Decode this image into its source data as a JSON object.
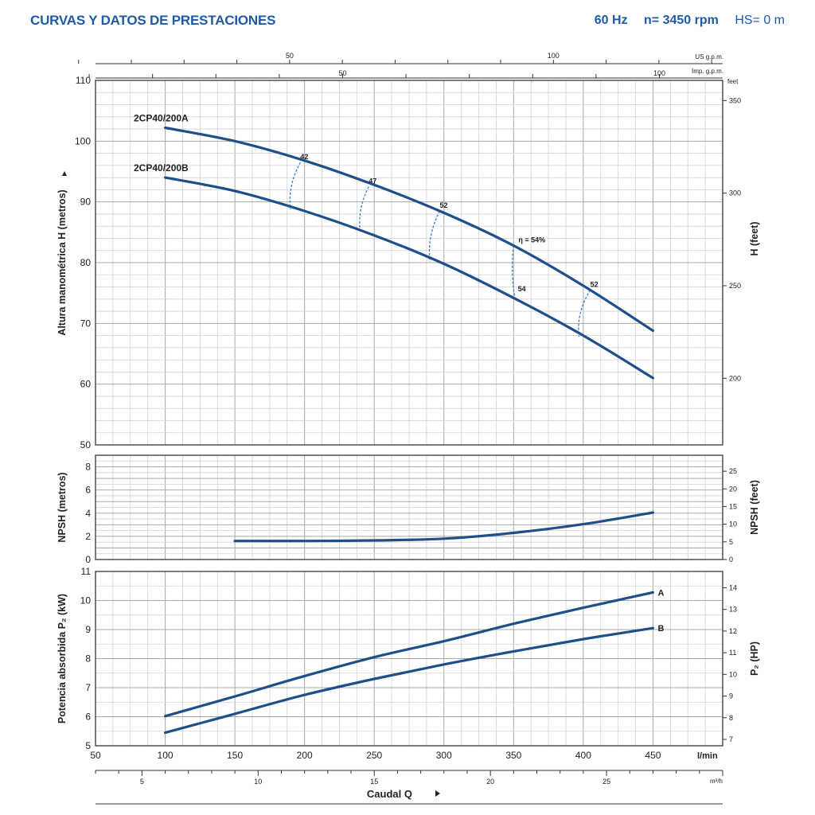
{
  "header": {
    "title": "CURVAS Y DATOS DE PRESTACIONES",
    "frequency": "60 Hz",
    "speed": "n= 3450 rpm",
    "hs": "HS= 0 m"
  },
  "colors": {
    "curve": "#1f4f8a",
    "title": "#1f5aa6",
    "grid": "#c4c4c4",
    "efficiency": "#3a7fc0"
  },
  "chart_data": [
    {
      "type": "line",
      "id": "head",
      "ylabel": "Altura manométrica H (metros)",
      "ylabel_right": "H (feet)",
      "right_unit": "feet",
      "xlim": [
        50,
        500
      ],
      "ylim": [
        50,
        110
      ],
      "yticks": [
        50,
        60,
        70,
        80,
        90,
        100,
        110
      ],
      "yticks_right": [
        200,
        250,
        300,
        350
      ],
      "top_scale_us": {
        "unit": "US g.p.m.",
        "ticks": [
          50,
          100
        ]
      },
      "top_scale_imp": {
        "unit": "Imp. g.p.m.",
        "ticks": [
          50,
          100
        ]
      },
      "series": [
        {
          "name": "2CP40/200A",
          "x": [
            100,
            150,
            200,
            250,
            300,
            350,
            400,
            450
          ],
          "y": [
            102.2,
            100,
            96.8,
            92.8,
            88.2,
            82.8,
            76.2,
            68.8
          ]
        },
        {
          "name": "2CP40/200B",
          "x": [
            100,
            150,
            200,
            250,
            300,
            350,
            400,
            450
          ],
          "y": [
            94,
            91.8,
            88.5,
            84.5,
            79.8,
            74.2,
            68,
            61
          ]
        }
      ],
      "efficiency": {
        "label_prefix": "η = ",
        "lines": [
          {
            "label": "42",
            "x_top": 197,
            "y_top": 96.5,
            "x_bot": 190,
            "y_bot": 88.8
          },
          {
            "label": "47",
            "x_top": 246,
            "y_top": 92.5,
            "x_bot": 240,
            "y_bot": 85
          },
          {
            "label": "52",
            "x_top": 297,
            "y_top": 88.5,
            "x_bot": 290,
            "y_bot": 80.2
          },
          {
            "label": "54%",
            "x_top": 350,
            "y_top": 82.8,
            "x_bot": 351,
            "y_bot": 74
          },
          {
            "label": "52",
            "x_top": 405,
            "y_top": 75.5,
            "x_bot": 397,
            "y_bot": 67.8
          }
        ],
        "bottom_label": {
          "text": "54",
          "x": 353,
          "y": 74.5
        }
      }
    },
    {
      "type": "line",
      "id": "npsh",
      "ylabel": "NPSH (metros)",
      "ylabel_right": "NPSH (feet)",
      "xlim": [
        50,
        500
      ],
      "ylim": [
        0,
        9
      ],
      "yticks": [
        0,
        2,
        4,
        6,
        8
      ],
      "yticks_right": [
        0,
        5,
        10,
        15,
        20,
        25
      ],
      "series": [
        {
          "name": "NPSH",
          "x": [
            150,
            200,
            250,
            300,
            350,
            400,
            450
          ],
          "y": [
            1.6,
            1.6,
            1.65,
            1.8,
            2.3,
            3.05,
            4.05
          ]
        }
      ]
    },
    {
      "type": "line",
      "id": "power",
      "ylabel": "Potencia absorbida P₂ (kW)",
      "ylabel_right": "P₂ (HP)",
      "xlabel": "Caudal Q",
      "xlim": [
        50,
        500
      ],
      "ylim": [
        5,
        11
      ],
      "yticks": [
        5,
        6,
        7,
        8,
        9,
        10,
        11
      ],
      "yticks_right": [
        7,
        8,
        9,
        10,
        11,
        12,
        13,
        14
      ],
      "xticks": [
        50,
        100,
        150,
        200,
        250,
        300,
        350,
        400,
        450
      ],
      "x_unit": "l/min",
      "bottom_scale": {
        "unit": "m³/h",
        "ticks": [
          5,
          10,
          15,
          20,
          25
        ]
      },
      "series": [
        {
          "name": "A",
          "x": [
            100,
            150,
            200,
            250,
            300,
            350,
            400,
            450
          ],
          "y": [
            6.02,
            6.7,
            7.4,
            8.05,
            8.6,
            9.2,
            9.75,
            10.28
          ]
        },
        {
          "name": "B",
          "x": [
            100,
            150,
            200,
            250,
            300,
            350,
            400,
            450
          ],
          "y": [
            5.45,
            6.1,
            6.75,
            7.3,
            7.8,
            8.25,
            8.67,
            9.05
          ]
        }
      ]
    }
  ]
}
